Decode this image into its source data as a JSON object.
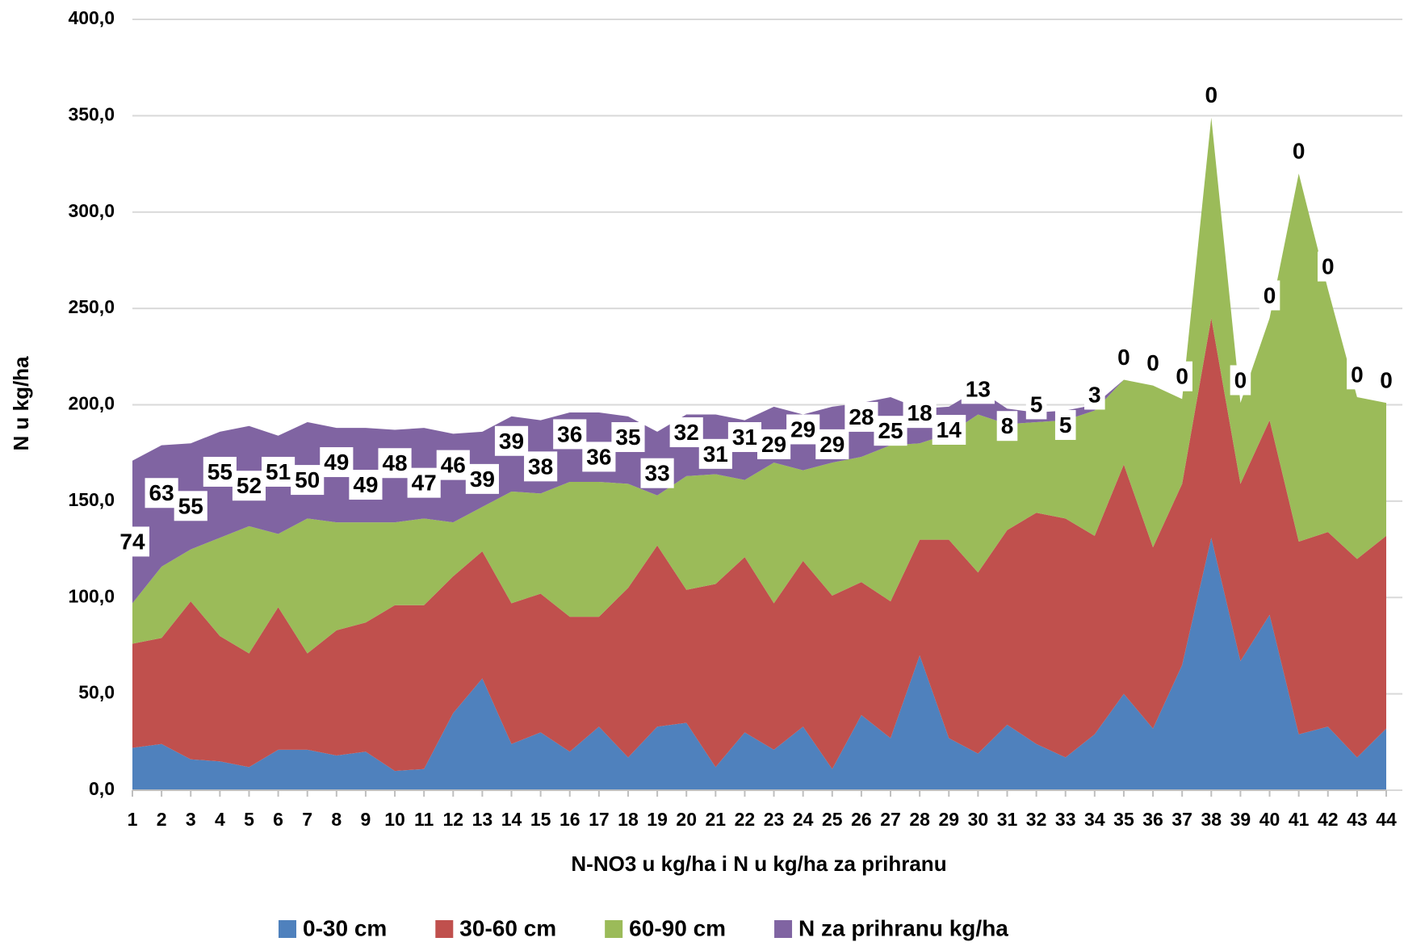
{
  "chart_data": {
    "type": "stacked_area",
    "x_label": "N-NO3 u kg/ha i N u kg/ha za prihranu",
    "y_label": "N u kg/ha",
    "categories": [
      "1",
      "2",
      "3",
      "4",
      "5",
      "6",
      "7",
      "8",
      "9",
      "10",
      "11",
      "12",
      "13",
      "14",
      "15",
      "16",
      "17",
      "18",
      "19",
      "20",
      "21",
      "22",
      "23",
      "24",
      "25",
      "26",
      "27",
      "28",
      "29",
      "30",
      "31",
      "32",
      "33",
      "34",
      "35",
      "36",
      "37",
      "38",
      "39",
      "40",
      "41",
      "42",
      "43",
      "44"
    ],
    "series": [
      {
        "name": "0-30 cm",
        "color": "#4f81bd",
        "values": [
          22,
          24,
          16,
          15,
          12,
          21,
          21,
          18,
          20,
          10,
          11,
          40,
          58,
          24,
          30,
          20,
          33,
          17,
          33,
          35,
          12,
          30,
          21,
          33,
          11,
          39,
          27,
          70,
          27,
          19,
          34,
          24,
          17,
          29,
          50,
          32,
          65,
          131,
          67,
          91,
          29,
          33,
          17,
          32
        ]
      },
      {
        "name": "30-60 cm",
        "color": "#c0504d",
        "values": [
          54,
          55,
          82,
          65,
          59,
          74,
          50,
          65,
          67,
          86,
          85,
          71,
          66,
          73,
          72,
          70,
          57,
          88,
          94,
          69,
          95,
          91,
          76,
          86,
          90,
          69,
          71,
          60,
          103,
          94,
          101,
          120,
          124,
          103,
          119,
          94,
          94,
          114,
          92,
          101,
          100,
          101,
          103,
          100
        ]
      },
      {
        "name": "60-90 cm",
        "color": "#9bbb59",
        "values": [
          21,
          37,
          27,
          51,
          66,
          38,
          70,
          56,
          52,
          43,
          45,
          28,
          23,
          58,
          52,
          70,
          70,
          54,
          26,
          59,
          57,
          40,
          73,
          47,
          69,
          65,
          81,
          50,
          55,
          82,
          55,
          47,
          51,
          65,
          44,
          84,
          44,
          104,
          42,
          53,
          191,
          126,
          84,
          69
        ]
      },
      {
        "name": "N za prihranu kg/ha",
        "color": "#8064a2",
        "values": [
          74,
          63,
          55,
          55,
          52,
          51,
          50,
          49,
          49,
          48,
          47,
          46,
          39,
          39,
          38,
          36,
          36,
          35,
          33,
          32,
          31,
          31,
          29,
          29,
          29,
          28,
          25,
          18,
          14,
          13,
          8,
          5,
          5,
          3,
          0,
          0,
          0,
          0,
          0,
          0,
          0,
          0,
          0,
          0
        ]
      }
    ],
    "ylim": [
      0,
      400
    ],
    "yticks": [
      {
        "value": 0,
        "label": "0,0"
      },
      {
        "value": 50,
        "label": "50,0"
      },
      {
        "value": 100,
        "label": "100,0"
      },
      {
        "value": 150,
        "label": "150,0"
      },
      {
        "value": 200,
        "label": "200,0"
      },
      {
        "value": 250,
        "label": "250,0"
      },
      {
        "value": 300,
        "label": "300,0"
      },
      {
        "value": 350,
        "label": "350,0"
      },
      {
        "value": 400,
        "label": "400,0"
      }
    ],
    "grid": true,
    "legend": "bottom"
  }
}
